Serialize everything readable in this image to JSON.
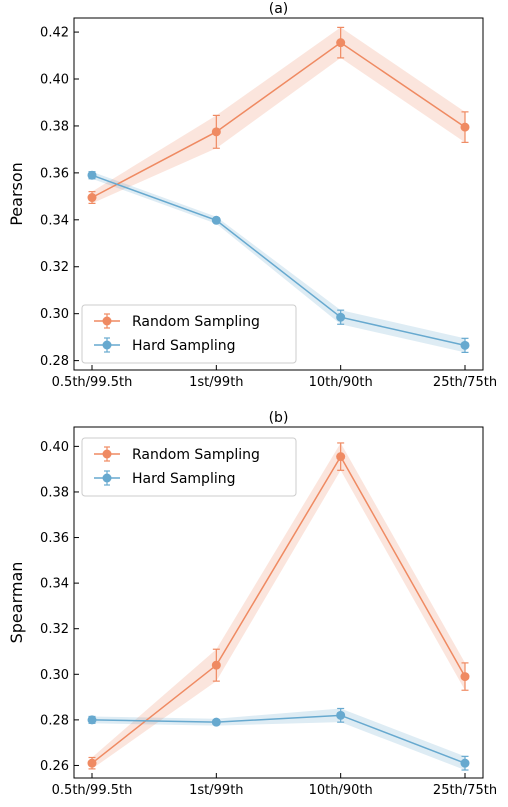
{
  "chart_data": [
    {
      "type": "line",
      "title": "(a)",
      "xlabel": "",
      "ylabel": "Pearson",
      "categories": [
        "0.5th/99.5th",
        "1st/99th",
        "10th/90th",
        "25th/75th"
      ],
      "ylim": [
        0.276,
        0.426
      ],
      "yticks": [
        0.28,
        0.3,
        0.32,
        0.34,
        0.36,
        0.38,
        0.4,
        0.42
      ],
      "ytick_labels": [
        "0.28",
        "0.30",
        "0.32",
        "0.34",
        "0.36",
        "0.38",
        "0.40",
        "0.42"
      ],
      "legend_position": "bottom-left",
      "grid": false,
      "series": [
        {
          "name": "Random Sampling",
          "color": "#ef8a62",
          "values": [
            0.3495,
            0.3775,
            0.4155,
            0.3795
          ],
          "err": [
            0.0025,
            0.007,
            0.0065,
            0.0065
          ],
          "band": [
            0.0025,
            0.007,
            0.0065,
            0.0065
          ]
        },
        {
          "name": "Hard Sampling",
          "color": "#67a9cf",
          "values": [
            0.359,
            0.3398,
            0.2985,
            0.2865
          ],
          "err": [
            0.0015,
            0.0008,
            0.003,
            0.003
          ],
          "band": [
            0.0015,
            0.0015,
            0.003,
            0.003
          ]
        }
      ]
    },
    {
      "type": "line",
      "title": "(b)",
      "xlabel": "",
      "ylabel": "Spearman",
      "categories": [
        "0.5th/99.5th",
        "1st/99th",
        "10th/90th",
        "25th/75th"
      ],
      "ylim": [
        0.2545,
        0.4085
      ],
      "yticks": [
        0.26,
        0.28,
        0.3,
        0.32,
        0.34,
        0.36,
        0.38,
        0.4
      ],
      "ytick_labels": [
        "0.26",
        "0.28",
        "0.30",
        "0.32",
        "0.34",
        "0.36",
        "0.38",
        "0.40"
      ],
      "legend_position": "top-left",
      "grid": false,
      "series": [
        {
          "name": "Random Sampling",
          "color": "#ef8a62",
          "values": [
            0.261,
            0.304,
            0.3955,
            0.299
          ],
          "err": [
            0.0025,
            0.007,
            0.006,
            0.006
          ],
          "band": [
            0.0025,
            0.007,
            0.006,
            0.006
          ]
        },
        {
          "name": "Hard Sampling",
          "color": "#67a9cf",
          "values": [
            0.28,
            0.279,
            0.282,
            0.261
          ],
          "err": [
            0.0015,
            0.001,
            0.003,
            0.003
          ],
          "band": [
            0.0015,
            0.0015,
            0.003,
            0.003
          ]
        }
      ]
    }
  ]
}
